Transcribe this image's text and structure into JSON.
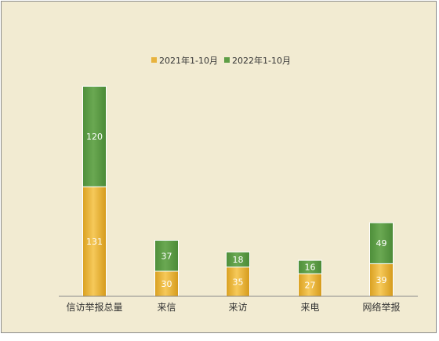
{
  "chart_data": {
    "type": "bar",
    "stacked": true,
    "categories": [
      "信访举报总量",
      "来信",
      "来访",
      "来电",
      "网络举报"
    ],
    "series": [
      {
        "name": "2021年1-10月",
        "values": [
          131,
          30,
          35,
          27,
          39
        ],
        "color": "#e8b33e"
      },
      {
        "name": "2022年1-10月",
        "values": [
          120,
          37,
          18,
          16,
          49
        ],
        "color": "#5e9e46"
      }
    ],
    "title": "",
    "xlabel": "",
    "ylabel": "",
    "legend": "top",
    "grid": false
  }
}
